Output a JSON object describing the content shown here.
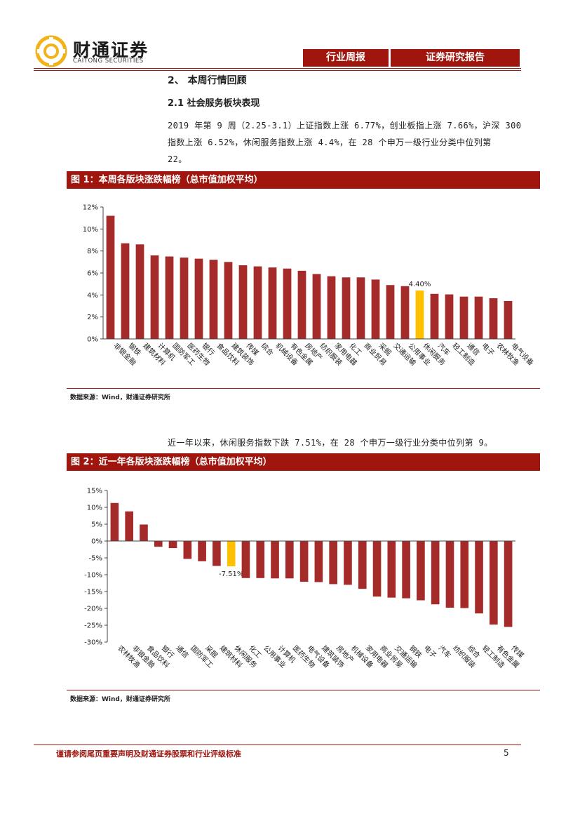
{
  "header": {
    "brand_cn": "财通证券",
    "brand_en": "CAITONG SECURITIES",
    "tab_weekly": "行业周报",
    "tab_report": "证券研究报告",
    "brand_color": "#a0160f",
    "logo_color": "#f2b31a"
  },
  "section": {
    "title": "2、 本周行情回顾",
    "subtitle": "2.1  社会服务板块表现"
  },
  "paragraphs": {
    "p1_line1": "2019 年第 9 周（2.25-3.1）上证指数上涨 6.77%，创业板指上涨 7.66%，沪深 300",
    "p1_line2": "指数上涨 6.52%，休闲服务指数上涨 4.4%，在 28 个申万一级行业分类中位列第",
    "p1_line3": "22。",
    "p2": "近一年以来，休闲服务指数下跌 7.51%，在 28 个申万一级行业分类中位列第 9。"
  },
  "figures": {
    "fig1_title": "图 1：本周各版块涨跌幅榜（总市值加权平均）",
    "fig2_title": "图 2：近一年各版块涨跌幅榜（总市值加权平均）",
    "source1": "数据来源：Wind，财通证券研究所",
    "source2": "数据来源：Wind，财通证券研究所"
  },
  "footer": {
    "note": "谨请参阅尾页重要声明及财通证券股票和行业评级标准",
    "page": "5"
  },
  "chart_data": [
    {
      "type": "bar",
      "title": "图 1：本周各版块涨跌幅榜（总市值加权平均）",
      "categories": [
        "非银金融",
        "钢铁",
        "建筑材料",
        "计算机",
        "国防军工",
        "医药生物",
        "银行",
        "食品饮料",
        "建筑装饰",
        "传媒",
        "综合",
        "机械设备",
        "有色金属",
        "房地产",
        "纺织服装",
        "家用电器",
        "化工",
        "商业贸易",
        "采掘",
        "交通运输",
        "公用事业",
        "休闲服务",
        "汽车",
        "轻工制造",
        "通信",
        "电子",
        "农林牧渔",
        "电气设备"
      ],
      "values": [
        11.2,
        8.7,
        8.6,
        7.6,
        7.5,
        7.4,
        7.3,
        7.2,
        7.0,
        6.7,
        6.6,
        6.5,
        6.4,
        6.2,
        5.9,
        5.7,
        5.6,
        5.6,
        5.4,
        4.9,
        4.8,
        4.4,
        4.1,
        4.05,
        3.85,
        3.85,
        3.7,
        3.45
      ],
      "highlight": "休闲服务",
      "highlight_label": "4.40%",
      "ylim": [
        0,
        12
      ],
      "yticks": [
        0,
        2,
        4,
        6,
        8,
        10,
        12
      ],
      "tick_suffix": "%",
      "bar_color": "#a52a2a",
      "highlight_color": "#ffc000"
    },
    {
      "type": "bar",
      "title": "图 2：近一年各版块涨跌幅榜（总市值加权平均）",
      "categories": [
        "农林牧渔",
        "非银金融",
        "食品饮料",
        "银行",
        "通信",
        "国防军工",
        "采掘",
        "建筑材料",
        "休闲服务",
        "化工",
        "公用事业",
        "计算机",
        "医药生物",
        "电气设备",
        "建筑装饰",
        "房地产",
        "机械设备",
        "家用电器",
        "商业贸易",
        "交通运输",
        "钢铁",
        "电子",
        "汽车",
        "纺织服装",
        "综合",
        "轻工制造",
        "有色金属",
        "传媒"
      ],
      "values": [
        11.3,
        8.8,
        4.9,
        -1.7,
        -2.1,
        -5.3,
        -6.0,
        -7.4,
        -7.51,
        -11.0,
        -11.0,
        -11.1,
        -11.1,
        -12.1,
        -12.2,
        -12.8,
        -13.0,
        -14.2,
        -16.5,
        -16.8,
        -17.0,
        -17.6,
        -18.8,
        -19.8,
        -19.9,
        -21.5,
        -24.8,
        -25.5
      ],
      "highlight": "休闲服务",
      "highlight_label": "-7.51%",
      "ylim": [
        -30,
        15
      ],
      "yticks": [
        15,
        10,
        5,
        0,
        -5,
        -10,
        -15,
        -20,
        -25,
        -30
      ],
      "tick_suffix": "%",
      "bar_color": "#a52a2a",
      "highlight_color": "#ffc000"
    }
  ]
}
